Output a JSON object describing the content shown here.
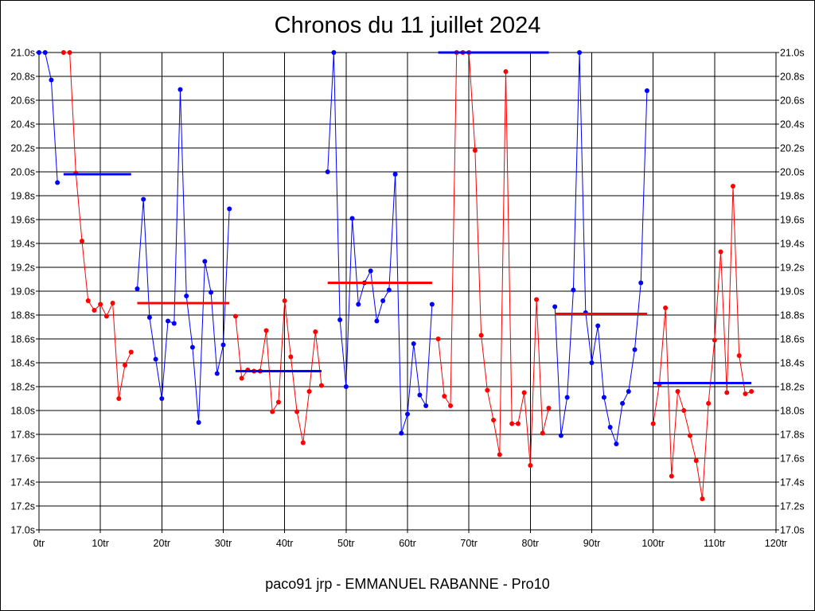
{
  "chart_data": {
    "type": "line",
    "title": "Chronos du 11 juillet 2024",
    "footer": "paco91 jrp - EMMANUEL RABANNE - Pro10",
    "xlabel": "",
    "ylabel": "",
    "xlim": [
      0,
      120
    ],
    "ylim": [
      17.0,
      21.0
    ],
    "x_ticks": [
      0,
      10,
      20,
      30,
      40,
      50,
      60,
      70,
      80,
      90,
      100,
      110,
      120
    ],
    "x_tick_labels": [
      "0tr",
      "10tr",
      "20tr",
      "30tr",
      "40tr",
      "50tr",
      "60tr",
      "70tr",
      "80tr",
      "90tr",
      "100tr",
      "110tr",
      "120tr"
    ],
    "y_ticks": [
      17.0,
      17.2,
      17.4,
      17.6,
      17.8,
      18.0,
      18.2,
      18.4,
      18.6,
      18.8,
      19.0,
      19.2,
      19.4,
      19.6,
      19.8,
      20.0,
      20.2,
      20.4,
      20.6,
      20.8,
      21.0
    ],
    "y_tick_labels": [
      "17.0s",
      "17.2s",
      "17.4s",
      "17.6s",
      "17.8s",
      "18.0s",
      "18.2s",
      "18.4s",
      "18.6s",
      "18.8s",
      "19.0s",
      "19.2s",
      "19.4s",
      "19.6s",
      "19.8s",
      "20.0s",
      "20.2s",
      "20.4s",
      "20.6s",
      "20.8s",
      "21.0s"
    ],
    "grid": true,
    "y_axis_both_sides": true,
    "segments": [
      {
        "color": "#0000ff",
        "x": [
          0,
          1,
          2,
          3
        ],
        "y": [
          21.0,
          21.0,
          20.77,
          19.91
        ],
        "average": {
          "x": [
            4,
            15
          ],
          "y": 19.98
        }
      },
      {
        "color": "#ff0000",
        "x": [
          4,
          5,
          6,
          7,
          8,
          9,
          10,
          11,
          12,
          13,
          14,
          15
        ],
        "y": [
          21.0,
          21.0,
          19.99,
          19.42,
          18.92,
          18.84,
          18.89,
          18.79,
          18.9,
          18.1,
          18.38,
          18.49
        ],
        "average": {
          "x": [
            16,
            31
          ],
          "y": 18.9
        }
      },
      {
        "color": "#0000ff",
        "x": [
          16,
          17,
          18,
          19,
          20,
          21,
          22,
          23,
          24,
          25,
          26,
          27,
          28,
          29,
          30,
          31
        ],
        "y": [
          19.02,
          19.77,
          18.78,
          18.43,
          18.1,
          18.75,
          18.73,
          20.69,
          18.96,
          18.53,
          17.9,
          19.25,
          18.99,
          18.31,
          18.55,
          19.69
        ],
        "average": {
          "x": [
            32,
            46
          ],
          "y": 18.33
        }
      },
      {
        "color": "#ff0000",
        "x": [
          32,
          33,
          34,
          35,
          36,
          37,
          38,
          39,
          40,
          41,
          42,
          43,
          44,
          45,
          46
        ],
        "y": [
          18.79,
          18.27,
          18.34,
          18.33,
          18.33,
          18.67,
          17.99,
          18.07,
          18.92,
          18.45,
          17.99,
          17.73,
          18.16,
          18.66,
          18.21
        ],
        "average": {
          "x": [
            47,
            64
          ],
          "y": 19.07
        }
      },
      {
        "color": "#0000ff",
        "x": [
          47,
          48,
          49,
          50,
          51,
          52,
          53,
          54,
          55,
          56,
          57,
          58,
          59,
          60,
          61,
          62,
          63,
          64
        ],
        "y": [
          20.0,
          21.0,
          18.76,
          18.2,
          19.61,
          18.89,
          19.07,
          19.17,
          18.75,
          18.92,
          19.01,
          19.98,
          17.81,
          17.97,
          18.56,
          18.13,
          18.04,
          18.89
        ],
        "average": {
          "x": [
            65,
            83
          ],
          "y": 21.0
        }
      },
      {
        "color": "#ff0000",
        "x": [
          65,
          66,
          67,
          68,
          69,
          70,
          71,
          72,
          73,
          74,
          75,
          76,
          77,
          78,
          79,
          80,
          81,
          82,
          83
        ],
        "y": [
          18.6,
          18.12,
          18.04,
          21.0,
          21.0,
          21.0,
          20.18,
          18.63,
          18.17,
          17.92,
          17.63,
          20.84,
          17.89,
          17.89,
          18.15,
          17.54,
          18.93,
          17.81,
          18.02
        ],
        "average": {
          "x": [
            84,
            99
          ],
          "y": 18.81
        }
      },
      {
        "color": "#0000ff",
        "x": [
          84,
          85,
          86,
          87,
          88,
          89,
          90,
          91,
          92,
          93,
          94,
          95,
          96,
          97,
          98,
          99
        ],
        "y": [
          18.87,
          17.79,
          18.11,
          19.01,
          21.0,
          18.82,
          18.4,
          18.71,
          18.11,
          17.86,
          17.72,
          18.06,
          18.16,
          18.51,
          19.07,
          20.68
        ],
        "average": {
          "x": [
            100,
            116
          ],
          "y": 18.23
        }
      },
      {
        "color": "#ff0000",
        "x": [
          100,
          101,
          102,
          103,
          104,
          105,
          106,
          107,
          108,
          109,
          110,
          111,
          112,
          113,
          114,
          115,
          116
        ],
        "y": [
          17.89,
          18.22,
          18.86,
          17.45,
          18.16,
          18.0,
          17.79,
          17.58,
          17.26,
          18.06,
          18.59,
          19.33,
          18.15,
          19.88,
          18.46,
          18.14,
          18.16
        ],
        "average": null
      }
    ]
  }
}
